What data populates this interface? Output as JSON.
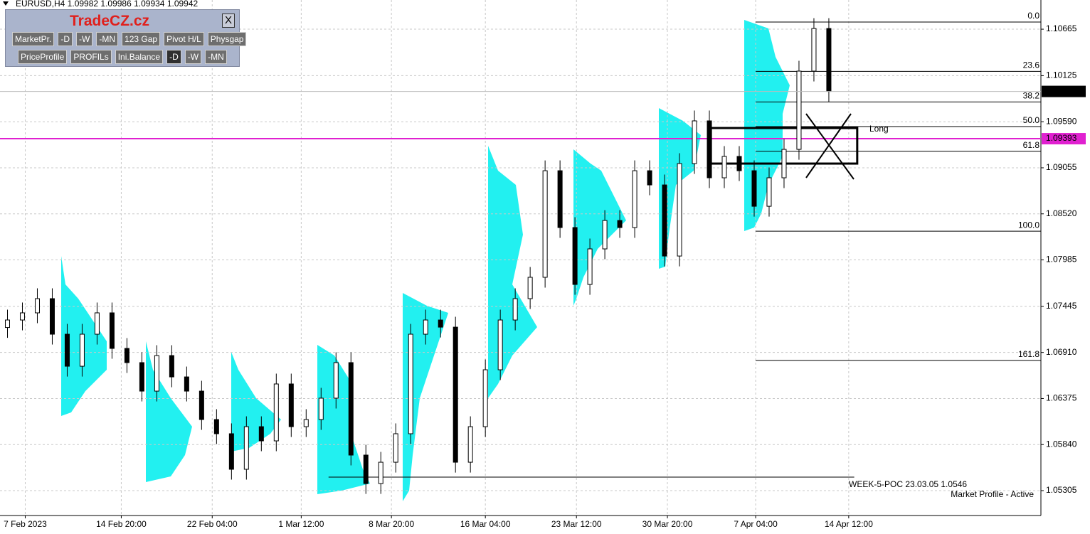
{
  "chart_data": {
    "type": "candlestick",
    "title": "EURUSD,H4  1.09982 1.09986 1.09934 1.09942",
    "open": [
      1.072,
      1.07287,
      1.0737,
      1.07535,
      1.07122,
      1.0675,
      1.07122,
      1.0737,
      1.06957,
      1.06792,
      1.06461,
      1.06874,
      1.06626,
      1.06461,
      1.06131,
      1.05966,
      1.05553,
      1.06048,
      1.05883,
      1.06544,
      1.06048,
      1.06131,
      1.06379,
      1.06792,
      1.05718,
      1.05387,
      1.05635,
      1.05966,
      1.07122,
      1.07287,
      1.07204,
      1.05635,
      1.06048,
      1.06709,
      1.07287,
      1.07535,
      1.07783,
      1.09021,
      1.08361,
      1.077,
      1.08113,
      1.08443,
      1.08361,
      1.09021,
      1.08856,
      1.0803,
      1.09104,
      1.096,
      1.08939,
      1.09187,
      1.09021,
      1.08608,
      1.08939,
      1.09269,
      1.10178,
      1.10673
    ],
    "high": [
      1.07407,
      1.0749,
      1.07655,
      1.07655,
      1.07242,
      1.07242,
      1.0749,
      1.0749,
      1.07077,
      1.06912,
      1.06994,
      1.06994,
      1.06746,
      1.06581,
      1.06251,
      1.06086,
      1.06168,
      1.06168,
      1.06664,
      1.06664,
      1.06251,
      1.06499,
      1.06912,
      1.06912,
      1.05838,
      1.05755,
      1.06086,
      1.07242,
      1.07407,
      1.07407,
      1.07324,
      1.06168,
      1.06829,
      1.07407,
      1.07655,
      1.07903,
      1.09141,
      1.09141,
      1.08481,
      1.08233,
      1.08563,
      1.08563,
      1.09141,
      1.09141,
      1.08976,
      1.09224,
      1.0972,
      1.0972,
      1.09307,
      1.09307,
      1.09141,
      1.09059,
      1.09389,
      1.10298,
      1.10793,
      1.10793
    ],
    "low": [
      1.0708,
      1.07167,
      1.0725,
      1.07002,
      1.0663,
      1.0663,
      1.07002,
      1.06837,
      1.06672,
      1.06341,
      1.06341,
      1.06506,
      1.06341,
      1.06011,
      1.05846,
      1.05433,
      1.05433,
      1.05763,
      1.05763,
      1.05928,
      1.05928,
      1.06011,
      1.06259,
      1.05598,
      1.05267,
      1.05267,
      1.05515,
      1.05846,
      1.07002,
      1.07084,
      1.05515,
      1.05515,
      1.05928,
      1.06589,
      1.07167,
      1.07415,
      1.07663,
      1.08241,
      1.0758,
      1.0758,
      1.07993,
      1.08241,
      1.08241,
      1.08736,
      1.0791,
      1.0791,
      1.08984,
      1.08819,
      1.08819,
      1.08901,
      1.08488,
      1.08488,
      1.08819,
      1.09149,
      1.10058,
      1.09822
    ],
    "close": [
      1.07287,
      1.0737,
      1.07535,
      1.07122,
      1.0675,
      1.07122,
      1.0737,
      1.06957,
      1.06792,
      1.06461,
      1.06874,
      1.06626,
      1.06461,
      1.06131,
      1.05966,
      1.05553,
      1.06048,
      1.05883,
      1.06544,
      1.06048,
      1.06131,
      1.06379,
      1.06792,
      1.05718,
      1.05387,
      1.05635,
      1.05966,
      1.07122,
      1.07287,
      1.07204,
      1.05635,
      1.06048,
      1.06709,
      1.07287,
      1.07535,
      1.07783,
      1.09021,
      1.08361,
      1.077,
      1.08113,
      1.08443,
      1.08361,
      1.09021,
      1.08856,
      1.0803,
      1.09104,
      1.096,
      1.08939,
      1.09187,
      1.09021,
      1.08608,
      1.08939,
      1.09269,
      1.10178,
      1.10673,
      1.09942
    ],
    "xlim": [
      -0.5,
      69.2
    ],
    "xticks": [
      {
        "value": 1.19,
        "label": "7 Feb 2023"
      },
      {
        "value": 7.62,
        "label": "14 Feb 20:00"
      },
      {
        "value": 13.71,
        "label": "22 Feb 04:00"
      },
      {
        "value": 19.67,
        "label": "1 Mar 12:00"
      },
      {
        "value": 25.71,
        "label": "8 Mar 20:00"
      },
      {
        "value": 32.0,
        "label": "16 Mar 04:00"
      },
      {
        "value": 38.1,
        "label": "23 Mar 12:00"
      },
      {
        "value": 44.19,
        "label": "30 Mar 20:00"
      },
      {
        "value": 50.1,
        "label": "7 Apr 04:00"
      },
      {
        "value": 56.33,
        "label": "14 Apr 12:00"
      }
    ],
    "ylim": [
      1.05016,
      1.11004
    ],
    "yticks": [
      1.10665,
      1.10125,
      {
        "value": 1.0959,
        "label": "1.09590"
      },
      1.09055,
      {
        "value": 1.0852,
        "label": "1.08520"
      },
      1.07985,
      1.07445,
      {
        "value": 1.0691,
        "label": "1.06910"
      },
      1.06375,
      {
        "value": 1.0584,
        "label": "1.05840"
      },
      1.05305
    ],
    "grid": true,
    "fib_start": 50.1,
    "fib_levels": [
      {
        "label": "0.0",
        "price": 1.10748
      },
      {
        "label": "23.6",
        "price": 1.10175
      },
      {
        "label": "38.2",
        "price": 1.0982
      },
      {
        "label": "50.0",
        "price": 1.09534
      },
      {
        "label": "61.8",
        "price": 1.09247
      },
      {
        "label": "100.0",
        "price": 1.08319
      },
      {
        "label": "161.8",
        "price": 1.06818
      }
    ],
    "last_price": 1.09942,
    "level_line": {
      "price": 1.09393,
      "color": "#e020d0",
      "label": "Long"
    },
    "poc": {
      "price": 1.05462,
      "from": 21.5,
      "to": 56.7,
      "label": "WEEK-5-POC 23.03.05 1.0546"
    },
    "box": {
      "from": 47.1,
      "to": 56.9,
      "top": 1.09517,
      "bottom": 1.09104
    },
    "status": "Market Profile - Active"
  },
  "panel": {
    "title": "TradeCZ.cz",
    "close": "X",
    "rows": [
      [
        "MarketPr.",
        "-D",
        "-W",
        "-MN",
        "123 Gap",
        "Pivot H/L",
        "Physgap"
      ],
      [
        "PriceProfile",
        "PROFILs",
        "Ini.Balance",
        "-D",
        "-W",
        "-MN"
      ]
    ]
  }
}
